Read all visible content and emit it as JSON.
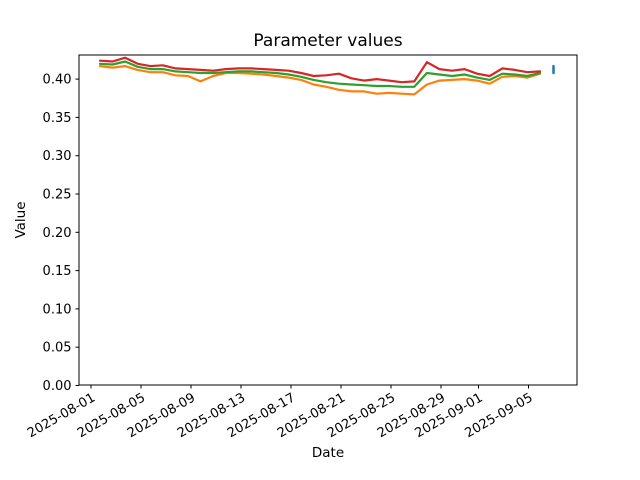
{
  "chart_data": {
    "type": "line",
    "title": "Parameter values",
    "xlabel": "Date",
    "ylabel": "Value",
    "grid": false,
    "legend": "none",
    "ylim": [
      0,
      0.431
    ],
    "y_tick_labels": [
      "0.00",
      "0.05",
      "0.10",
      "0.15",
      "0.20",
      "0.25",
      "0.30",
      "0.35",
      "0.40"
    ],
    "x_tick_labels": [
      "2025-08-01",
      "2025-08-05",
      "2025-08-09",
      "2025-08-13",
      "2025-08-17",
      "2025-08-21",
      "2025-08-25",
      "2025-08-29",
      "2025-09-01",
      "2025-09-05"
    ],
    "dates": [
      "2025-08-01",
      "2025-08-02",
      "2025-08-03",
      "2025-08-04",
      "2025-08-05",
      "2025-08-06",
      "2025-08-07",
      "2025-08-08",
      "2025-08-09",
      "2025-08-10",
      "2025-08-11",
      "2025-08-12",
      "2025-08-13",
      "2025-08-14",
      "2025-08-15",
      "2025-08-16",
      "2025-08-17",
      "2025-08-18",
      "2025-08-19",
      "2025-08-20",
      "2025-08-21",
      "2025-08-22",
      "2025-08-23",
      "2025-08-24",
      "2025-08-25",
      "2025-08-26",
      "2025-08-27",
      "2025-08-28",
      "2025-08-29",
      "2025-08-30",
      "2025-08-31",
      "2025-09-01",
      "2025-09-02",
      "2025-09-03",
      "2025-09-04",
      "2025-09-05"
    ],
    "series": [
      {
        "name": "orange",
        "color": "#ff7f0e",
        "values": [
          0.417,
          0.415,
          0.417,
          0.412,
          0.409,
          0.409,
          0.405,
          0.404,
          0.397,
          0.404,
          0.408,
          0.408,
          0.407,
          0.406,
          0.404,
          0.402,
          0.399,
          0.393,
          0.39,
          0.386,
          0.384,
          0.384,
          0.381,
          0.382,
          0.381,
          0.38,
          0.393,
          0.398,
          0.399,
          0.4,
          0.398,
          0.394,
          0.403,
          0.404,
          0.402,
          0.407
        ]
      },
      {
        "name": "green",
        "color": "#2ca02c",
        "values": [
          0.42,
          0.419,
          0.423,
          0.416,
          0.413,
          0.413,
          0.41,
          0.409,
          0.408,
          0.408,
          0.409,
          0.41,
          0.41,
          0.409,
          0.408,
          0.406,
          0.403,
          0.399,
          0.396,
          0.394,
          0.393,
          0.392,
          0.391,
          0.391,
          0.39,
          0.39,
          0.408,
          0.406,
          0.404,
          0.406,
          0.402,
          0.399,
          0.407,
          0.406,
          0.404,
          0.408
        ]
      },
      {
        "name": "red",
        "color": "#d62728",
        "values": [
          0.424,
          0.423,
          0.428,
          0.42,
          0.417,
          0.418,
          0.414,
          0.413,
          0.412,
          0.411,
          0.413,
          0.414,
          0.414,
          0.413,
          0.412,
          0.411,
          0.408,
          0.404,
          0.405,
          0.407,
          0.401,
          0.398,
          0.4,
          0.398,
          0.396,
          0.397,
          0.422,
          0.413,
          0.411,
          0.413,
          0.407,
          0.404,
          0.414,
          0.412,
          0.409,
          0.41
        ]
      }
    ],
    "marker_series": {
      "name": "blue",
      "color": "#1f77b4",
      "date": "2025-09-07",
      "value_low": 0.408,
      "value_high": 0.417
    }
  }
}
